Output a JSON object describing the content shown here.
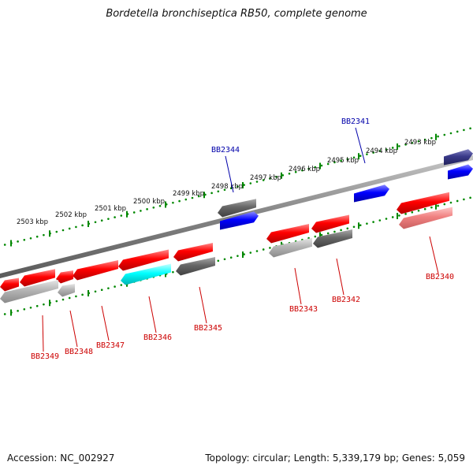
{
  "title": "Bordetella bronchiseptica RB50, complete genome",
  "footer": {
    "accession": "Accession: NC_002927",
    "summary": "Topology: circular; Length: 5,339,179 bp; Genes: 5,059"
  },
  "colors": {
    "backbone": "#888888",
    "tick": "#008800",
    "label_red": "#cc0000",
    "label_blue": "#0000aa",
    "gene_red": "#ff0000",
    "gene_blue": "#0000ff",
    "gene_navy": "#3a3a8a",
    "gene_gray": "#666666",
    "gene_lightgray": "#b4b4b4",
    "gene_pink": "#f08080",
    "gene_cyan": "#00ffff"
  },
  "kbp_labels": [
    "2493 kbp",
    "2494 kbp",
    "2495 kbp",
    "2496 kbp",
    "2497 kbp",
    "2498 kbp",
    "2499 kbp",
    "2500 kbp",
    "2501 kbp",
    "2502 kbp",
    "2503 kbp"
  ],
  "gene_labels": [
    {
      "text": "BB2341",
      "color": "blue"
    },
    {
      "text": "BB2344",
      "color": "blue"
    },
    {
      "text": "BB2340",
      "color": "red"
    },
    {
      "text": "BB2342",
      "color": "red"
    },
    {
      "text": "BB2343",
      "color": "red"
    },
    {
      "text": "BB2345",
      "color": "red"
    },
    {
      "text": "BB2346",
      "color": "red"
    },
    {
      "text": "BB2347",
      "color": "red"
    },
    {
      "text": "BB2348",
      "color": "red"
    },
    {
      "text": "BB2349",
      "color": "red"
    }
  ]
}
